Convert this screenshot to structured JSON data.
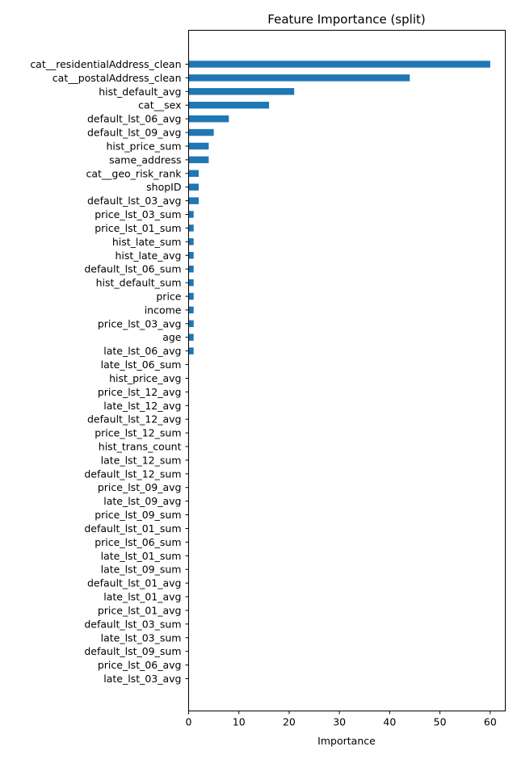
{
  "chart_data": {
    "type": "bar",
    "orientation": "horizontal",
    "title": "Feature Importance (split)",
    "xlabel": "Importance",
    "ylabel": "",
    "xlim": [
      0,
      63
    ],
    "xticks": [
      0,
      10,
      20,
      30,
      40,
      50,
      60
    ],
    "grid": false,
    "bar_color": "#1f77b4",
    "categories": [
      "cat__residentialAddress_clean",
      "cat__postalAddress_clean",
      "hist_default_avg",
      "cat__sex",
      "default_lst_06_avg",
      "default_lst_09_avg",
      "hist_price_sum",
      "same_address",
      "cat__geo_risk_rank",
      "shopID",
      "default_lst_03_avg",
      "price_lst_03_sum",
      "price_lst_01_sum",
      "hist_late_sum",
      "hist_late_avg",
      "default_lst_06_sum",
      "hist_default_sum",
      "price",
      "income",
      "price_lst_03_avg",
      "age",
      "late_lst_06_avg",
      "late_lst_06_sum",
      "hist_price_avg",
      "price_lst_12_avg",
      "late_lst_12_avg",
      "default_lst_12_avg",
      "price_lst_12_sum",
      "hist_trans_count",
      "late_lst_12_sum",
      "default_lst_12_sum",
      "price_lst_09_avg",
      "late_lst_09_avg",
      "price_lst_09_sum",
      "default_lst_01_sum",
      "price_lst_06_sum",
      "late_lst_01_sum",
      "late_lst_09_sum",
      "default_lst_01_avg",
      "late_lst_01_avg",
      "price_lst_01_avg",
      "default_lst_03_sum",
      "late_lst_03_sum",
      "default_lst_09_sum",
      "price_lst_06_avg",
      "late_lst_03_avg"
    ],
    "values": [
      60,
      44,
      21,
      16,
      8,
      5,
      4,
      4,
      2,
      2,
      2,
      1,
      1,
      1,
      1,
      1,
      1,
      1,
      1,
      1,
      1,
      1,
      0,
      0,
      0,
      0,
      0,
      0,
      0,
      0,
      0,
      0,
      0,
      0,
      0,
      0,
      0,
      0,
      0,
      0,
      0,
      0,
      0,
      0,
      0,
      0
    ]
  }
}
